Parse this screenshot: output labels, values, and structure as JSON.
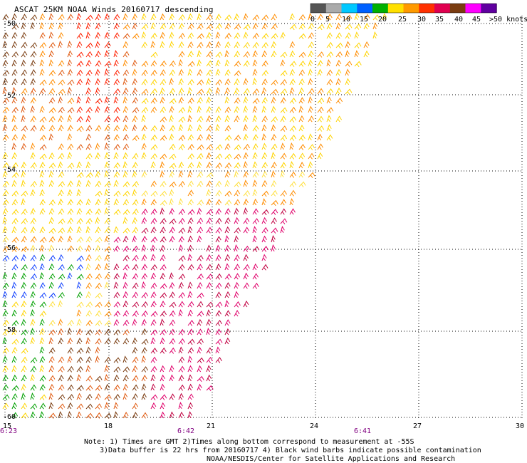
{
  "title": "ASCAT 25KM NOAA Winds 20160717 descending",
  "legend": {
    "labels": [
      "0",
      "5",
      "10",
      "15",
      "20",
      "25",
      "30",
      "35",
      "40",
      "45",
      ">50 knots"
    ],
    "colors": [
      "#555555",
      "#aaaaaa",
      "#00c8ff",
      "#0060ff",
      "#00b000",
      "#ffe000",
      "#ff9a00",
      "#ff3000",
      "#e00050",
      "#7a3c10",
      "#ff00ff",
      "#6000a0"
    ]
  },
  "map": {
    "lat_labels": [
      "-50",
      "-52",
      "-54",
      "-56",
      "-58",
      "-60"
    ],
    "lon_labels": [
      "15",
      "18",
      "21",
      "24",
      "27",
      "30"
    ],
    "time_labels": [
      "6:23",
      "6:42",
      "6:41"
    ],
    "time_color": "#800080"
  },
  "notes": {
    "line1": "Note: 1) Times are GMT 2)Times along bottom correspond to measurement at -55S",
    "line2": "3)Data buffer is 22 hrs from 20160717 4) Black wind barbs indicate possible contamination",
    "line3": "NOAA/NESDIS/Center for Satellite Applications and Research"
  }
}
